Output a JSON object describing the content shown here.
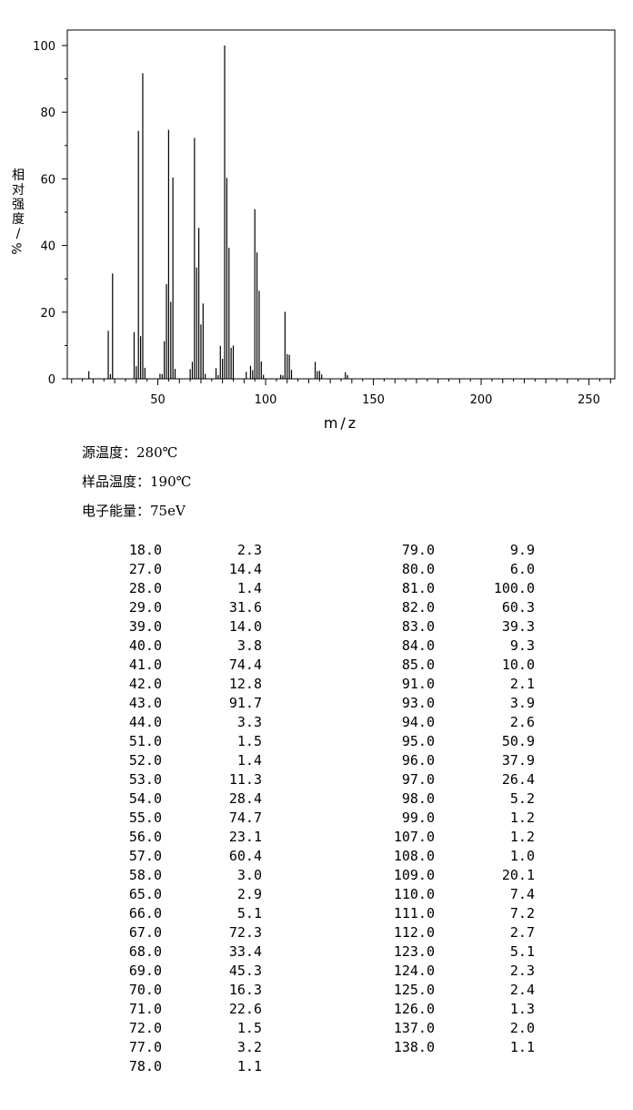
{
  "chart_data": {
    "type": "bar",
    "x_axis_label": "m/z",
    "y_axis_label_chars": [
      "相",
      "对",
      "强",
      "度",
      "/"
    ],
    "y_axis_label_unit": "%",
    "xlim": [
      8,
      262
    ],
    "ylim": [
      0,
      105
    ],
    "x_ticks": [
      50,
      100,
      150,
      200,
      250
    ],
    "y_ticks": [
      0,
      20,
      40,
      60,
      80,
      100
    ],
    "grid": false,
    "peaks": [
      [
        18.0,
        2.3
      ],
      [
        27.0,
        14.4
      ],
      [
        28.0,
        1.4
      ],
      [
        29.0,
        31.6
      ],
      [
        39.0,
        14.0
      ],
      [
        40.0,
        3.8
      ],
      [
        41.0,
        74.4
      ],
      [
        42.0,
        12.8
      ],
      [
        43.0,
        91.7
      ],
      [
        44.0,
        3.3
      ],
      [
        51.0,
        1.5
      ],
      [
        52.0,
        1.4
      ],
      [
        53.0,
        11.3
      ],
      [
        54.0,
        28.4
      ],
      [
        55.0,
        74.7
      ],
      [
        56.0,
        23.1
      ],
      [
        57.0,
        60.4
      ],
      [
        58.0,
        3.0
      ],
      [
        65.0,
        2.9
      ],
      [
        66.0,
        5.1
      ],
      [
        67.0,
        72.3
      ],
      [
        68.0,
        33.4
      ],
      [
        69.0,
        45.3
      ],
      [
        70.0,
        16.3
      ],
      [
        71.0,
        22.6
      ],
      [
        72.0,
        1.5
      ],
      [
        77.0,
        3.2
      ],
      [
        78.0,
        1.1
      ],
      [
        79.0,
        9.9
      ],
      [
        80.0,
        6.0
      ],
      [
        81.0,
        100.0
      ],
      [
        82.0,
        60.3
      ],
      [
        83.0,
        39.3
      ],
      [
        84.0,
        9.3
      ],
      [
        85.0,
        10.0
      ],
      [
        91.0,
        2.1
      ],
      [
        93.0,
        3.9
      ],
      [
        94.0,
        2.6
      ],
      [
        95.0,
        50.9
      ],
      [
        96.0,
        37.9
      ],
      [
        97.0,
        26.4
      ],
      [
        98.0,
        5.2
      ],
      [
        99.0,
        1.2
      ],
      [
        107.0,
        1.2
      ],
      [
        108.0,
        1.0
      ],
      [
        109.0,
        20.1
      ],
      [
        110.0,
        7.4
      ],
      [
        111.0,
        7.2
      ],
      [
        112.0,
        2.7
      ],
      [
        123.0,
        5.1
      ],
      [
        124.0,
        2.3
      ],
      [
        125.0,
        2.4
      ],
      [
        126.0,
        1.3
      ],
      [
        137.0,
        2.0
      ],
      [
        138.0,
        1.1
      ]
    ],
    "table": {
      "left": [
        [
          "18.0",
          "2.3"
        ],
        [
          "27.0",
          "14.4"
        ],
        [
          "28.0",
          "1.4"
        ],
        [
          "29.0",
          "31.6"
        ],
        [
          "39.0",
          "14.0"
        ],
        [
          "40.0",
          "3.8"
        ],
        [
          "41.0",
          "74.4"
        ],
        [
          "42.0",
          "12.8"
        ],
        [
          "43.0",
          "91.7"
        ],
        [
          "44.0",
          "3.3"
        ],
        [
          "51.0",
          "1.5"
        ],
        [
          "52.0",
          "1.4"
        ],
        [
          "53.0",
          "11.3"
        ],
        [
          "54.0",
          "28.4"
        ],
        [
          "55.0",
          "74.7"
        ],
        [
          "56.0",
          "23.1"
        ],
        [
          "57.0",
          "60.4"
        ],
        [
          "58.0",
          "3.0"
        ],
        [
          "65.0",
          "2.9"
        ],
        [
          "66.0",
          "5.1"
        ],
        [
          "67.0",
          "72.3"
        ],
        [
          "68.0",
          "33.4"
        ],
        [
          "69.0",
          "45.3"
        ],
        [
          "70.0",
          "16.3"
        ],
        [
          "71.0",
          "22.6"
        ],
        [
          "72.0",
          "1.5"
        ],
        [
          "77.0",
          "3.2"
        ],
        [
          "78.0",
          "1.1"
        ]
      ],
      "right": [
        [
          "79.0",
          "9.9"
        ],
        [
          "80.0",
          "6.0"
        ],
        [
          "81.0",
          "100.0"
        ],
        [
          "82.0",
          "60.3"
        ],
        [
          "83.0",
          "39.3"
        ],
        [
          "84.0",
          "9.3"
        ],
        [
          "85.0",
          "10.0"
        ],
        [
          "91.0",
          "2.1"
        ],
        [
          "93.0",
          "3.9"
        ],
        [
          "94.0",
          "2.6"
        ],
        [
          "95.0",
          "50.9"
        ],
        [
          "96.0",
          "37.9"
        ],
        [
          "97.0",
          "26.4"
        ],
        [
          "98.0",
          "5.2"
        ],
        [
          "99.0",
          "1.2"
        ],
        [
          "107.0",
          "1.2"
        ],
        [
          "108.0",
          "1.0"
        ],
        [
          "109.0",
          "20.1"
        ],
        [
          "110.0",
          "7.4"
        ],
        [
          "111.0",
          "7.2"
        ],
        [
          "112.0",
          "2.7"
        ],
        [
          "123.0",
          "5.1"
        ],
        [
          "124.0",
          "2.3"
        ],
        [
          "125.0",
          "2.4"
        ],
        [
          "126.0",
          "1.3"
        ],
        [
          "137.0",
          "2.0"
        ],
        [
          "138.0",
          "1.1"
        ]
      ]
    }
  },
  "conditions": {
    "source_temp": "源温度：280℃",
    "sample_temp": "样品温度：190℃",
    "electron_energy": "电子能量：75eV"
  }
}
